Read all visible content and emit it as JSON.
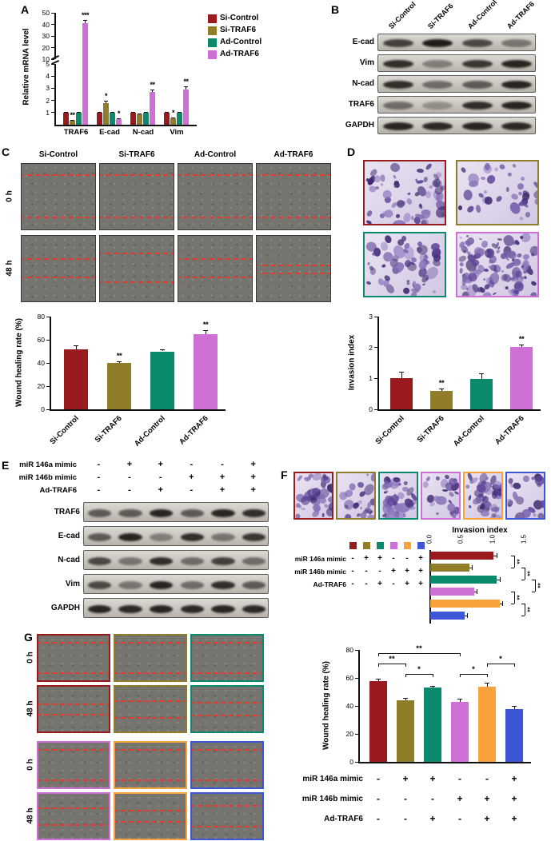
{
  "panels": {
    "A": {
      "label": "A"
    },
    "B": {
      "label": "B",
      "blot_rows": [
        "E-cad",
        "Vim",
        "N-cad",
        "TRAF6",
        "GAPDH"
      ],
      "bands": [
        [
          0.75,
          0.95,
          0.7,
          0.45
        ],
        [
          0.85,
          0.4,
          0.8,
          0.9
        ],
        [
          0.85,
          0.5,
          0.6,
          0.9
        ],
        [
          0.5,
          0.3,
          0.85,
          0.9
        ],
        [
          0.9,
          0.88,
          0.9,
          0.88
        ]
      ]
    },
    "C": {
      "label": "C",
      "row_labels": [
        "0 h",
        "48 h"
      ]
    },
    "D": {
      "label": "D"
    },
    "E": {
      "label": "E",
      "blot_rows": [
        "TRAF6",
        "E-cad",
        "N-cad",
        "Vim",
        "GAPDH"
      ],
      "bands": [
        [
          0.6,
          0.6,
          0.9,
          0.6,
          0.9,
          0.85
        ],
        [
          0.6,
          0.9,
          0.4,
          0.85,
          0.45,
          0.8
        ],
        [
          0.7,
          0.45,
          0.85,
          0.5,
          0.75,
          0.5
        ],
        [
          0.7,
          0.45,
          0.9,
          0.5,
          0.85,
          0.6
        ],
        [
          0.9,
          0.88,
          0.9,
          0.88,
          0.9,
          0.88
        ]
      ]
    },
    "F": {
      "label": "F"
    },
    "G": {
      "label": "G",
      "row_labels": [
        "0 h",
        "48 h",
        "0 h",
        "48 h"
      ]
    }
  },
  "conditions4": [
    "Si-Control",
    "Si-TRAF6",
    "Ad-Control",
    "Ad-TRAF6"
  ],
  "condition_table": {
    "rows": [
      {
        "label": "miR 146a mimic",
        "values": [
          "-",
          "+",
          "+",
          "-",
          "-",
          "+"
        ]
      },
      {
        "label": "miR 146b mimic",
        "values": [
          "-",
          "-",
          "-",
          "+",
          "+",
          "+"
        ]
      },
      {
        "label": "Ad-TRAF6",
        "values": [
          "-",
          "-",
          "+",
          "-",
          "+",
          "+"
        ]
      }
    ]
  },
  "colors": {
    "group4": [
      "#9a1b1e",
      "#8f7d2a",
      "#0c8a6e",
      "#cf70d6"
    ],
    "group6": [
      "#9a1b1e",
      "#8f7d2a",
      "#0c8a6e",
      "#cf70d6",
      "#f9a23c",
      "#3d56d6"
    ]
  },
  "chart_data": [
    {
      "id": "mrna",
      "type": "bar",
      "ylabel": "Relative mRNA level",
      "categories": [
        "TRAF6",
        "E-cad",
        "N-cad",
        "Vim"
      ],
      "series": [
        {
          "name": "Si-Control",
          "values": [
            1.0,
            1.0,
            1.0,
            1.0
          ],
          "errors": [
            0.08,
            0.08,
            0.08,
            0.08
          ],
          "sig": [
            "",
            "",
            "",
            ""
          ]
        },
        {
          "name": "Si-TRAF6",
          "values": [
            0.35,
            1.8,
            0.85,
            0.55
          ],
          "errors": [
            0.05,
            0.15,
            0.08,
            0.06
          ],
          "sig": [
            "**",
            "*",
            "",
            "*"
          ]
        },
        {
          "name": "Ad-Control",
          "values": [
            1.0,
            1.0,
            1.0,
            1.0
          ],
          "errors": [
            0.08,
            0.08,
            0.08,
            0.08
          ],
          "sig": [
            "",
            "",
            "",
            ""
          ]
        },
        {
          "name": "Ad-TRAF6",
          "values": [
            41,
            0.45,
            2.7,
            2.9
          ],
          "errors": [
            3,
            0.06,
            0.2,
            0.25
          ],
          "sig": [
            "***",
            "*",
            "**",
            "**"
          ]
        }
      ],
      "broken_axis": {
        "lower_ticks": [
          1,
          2,
          3,
          4,
          5
        ],
        "upper_ticks": [
          10,
          20,
          30,
          40,
          50
        ],
        "lower_max": 5,
        "upper_min": 10,
        "upper_max": 50
      },
      "legend": [
        "Si-Control",
        "Si-TRAF6",
        "Ad-Control",
        "Ad-TRAF6"
      ],
      "legend_position": "right"
    },
    {
      "id": "wound4",
      "type": "bar",
      "ylabel": "Wound healing rate (%)",
      "categories": [
        "Si-Control",
        "Si-TRAF6",
        "Ad-Control",
        "Ad-TRAF6"
      ],
      "values": [
        52,
        40,
        50,
        65
      ],
      "errors": [
        3,
        1.5,
        1.5,
        3
      ],
      "sig": [
        "",
        "**",
        "",
        "**"
      ],
      "ylim": [
        0,
        80
      ],
      "yticks": [
        0,
        20,
        40,
        60,
        80
      ]
    },
    {
      "id": "invasion4",
      "type": "bar",
      "ylabel": "Invasion index",
      "categories": [
        "Si-Control",
        "Si-TRAF6",
        "Ad-Control",
        "Ad-TRAF6"
      ],
      "values": [
        1.0,
        0.6,
        0.97,
        2.02
      ],
      "errors": [
        0.22,
        0.07,
        0.2,
        0.07
      ],
      "sig": [
        "",
        "**",
        "",
        "**"
      ],
      "ylim": [
        0,
        3
      ],
      "yticks": [
        0,
        1,
        2,
        3
      ]
    },
    {
      "id": "invasion6",
      "type": "bar",
      "orientation": "horizontal",
      "title": "Invasion index",
      "values": [
        1.0,
        0.62,
        1.05,
        0.7,
        1.1,
        0.55
      ],
      "errors": [
        0.05,
        0.04,
        0.05,
        0.04,
        0.05,
        0.04
      ],
      "xlim": [
        0,
        1.5
      ],
      "xticks": [
        0,
        0.5,
        1,
        1.5
      ],
      "brackets": [
        {
          "a": 0,
          "b": 1,
          "label": "**"
        },
        {
          "a": 1,
          "b": 2,
          "label": "**"
        },
        {
          "a": 2,
          "b": 3,
          "label": "**"
        },
        {
          "a": 3,
          "b": 4,
          "label": "**"
        },
        {
          "a": 4,
          "b": 5,
          "label": "**"
        }
      ]
    },
    {
      "id": "wound6",
      "type": "bar",
      "ylabel": "Wound healing rate (%)",
      "values": [
        58,
        44,
        53,
        43,
        54,
        38
      ],
      "errors": [
        1.5,
        1.5,
        1.5,
        2,
        2.5,
        2
      ],
      "ylim": [
        0,
        80
      ],
      "yticks": [
        0,
        20,
        40,
        60,
        80
      ],
      "brackets": [
        {
          "a": 0,
          "b": 1,
          "label": "**",
          "level": 1
        },
        {
          "a": 1,
          "b": 2,
          "label": "*",
          "level": 0
        },
        {
          "a": 0,
          "b": 3,
          "label": "**",
          "level": 2
        },
        {
          "a": 3,
          "b": 4,
          "label": "*",
          "level": 0
        },
        {
          "a": 4,
          "b": 5,
          "label": "*",
          "level": 1
        }
      ]
    }
  ]
}
